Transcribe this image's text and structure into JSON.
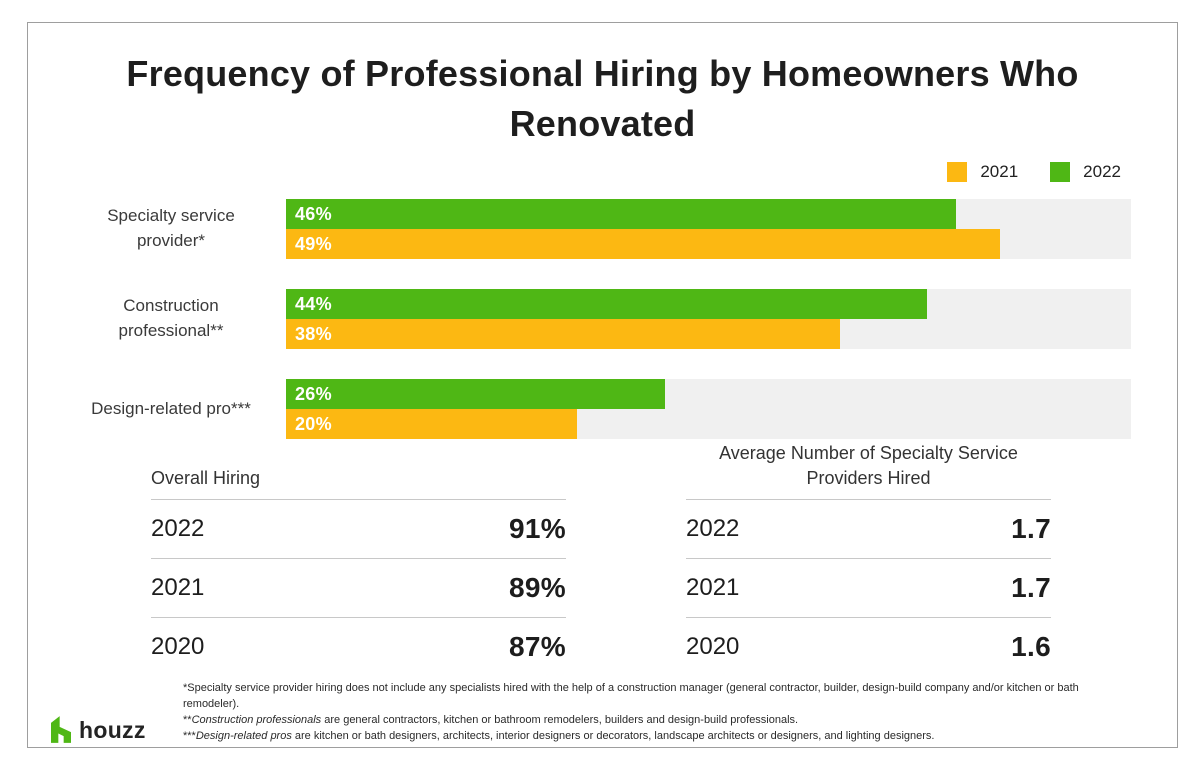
{
  "title": "Frequency of Professional Hiring by Homeowners Who Renovated",
  "legend": [
    {
      "label": "2021",
      "color": "#FCB812"
    },
    {
      "label": "2022",
      "color": "#4FB715"
    }
  ],
  "chart_data": {
    "type": "bar",
    "orientation": "horizontal",
    "title": "Frequency of Professional Hiring by Homeowners Who Renovated",
    "categories": [
      "Specialty service\nprovider*",
      "Construction\nprofessional**",
      "Design-related pro***"
    ],
    "series": [
      {
        "name": "2022",
        "color": "#4FB715",
        "values": [
          46,
          44,
          26
        ],
        "labels": [
          "46%",
          "44%",
          "26%"
        ]
      },
      {
        "name": "2021",
        "color": "#FCB812",
        "values": [
          49,
          38,
          20
        ],
        "labels": [
          "49%",
          "38%",
          "20%"
        ]
      }
    ],
    "value_suffix": "%",
    "xlim": [
      0,
      58
    ],
    "grid": false,
    "legend_position": "top-right",
    "track_color": "#F0F0F0"
  },
  "tables": [
    {
      "header": "Overall Hiring",
      "rows": [
        [
          "2022",
          "91%"
        ],
        [
          "2021",
          "89%"
        ],
        [
          "2020",
          "87%"
        ]
      ]
    },
    {
      "header": "Average Number of Specialty Service Providers Hired",
      "rows": [
        [
          "2022",
          "1.7"
        ],
        [
          "2021",
          "1.7"
        ],
        [
          "2020",
          "1.6"
        ]
      ]
    }
  ],
  "footnotes": [
    {
      "parts": [
        {
          "text": "*Specialty service provider hiring does not include any specialists hired with the help of a construction manager (general contractor, builder, design-build company and/or kitchen or bath remodeler).",
          "italic": false
        }
      ]
    },
    {
      "parts": [
        {
          "text": "**",
          "italic": false
        },
        {
          "text": "Construction professionals",
          "italic": true
        },
        {
          "text": " are general contractors, kitchen or bathroom remodelers, builders and design-build professionals.",
          "italic": false
        }
      ]
    },
    {
      "parts": [
        {
          "text": "***",
          "italic": false
        },
        {
          "text": "Design-related pros",
          "italic": true
        },
        {
          "text": " are kitchen or bath designers, architects, interior designers or decorators, landscape architects or designers, and lighting designers.",
          "italic": false
        }
      ]
    }
  ],
  "logo": {
    "brand": "houzz",
    "color": "#4FB715"
  }
}
